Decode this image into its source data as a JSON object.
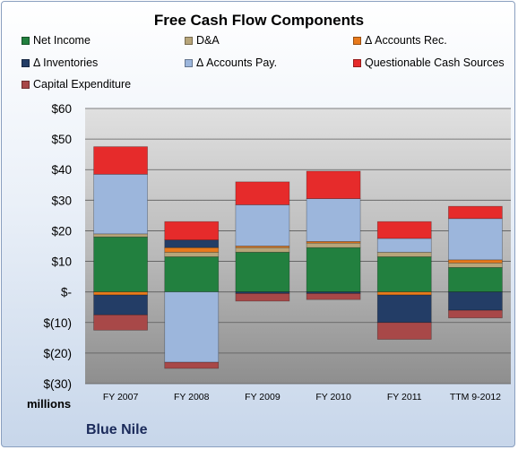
{
  "chart_data": {
    "type": "bar",
    "stacked": true,
    "title": "Free Cash Flow Components",
    "categories": [
      "FY 2007",
      "FY 2008",
      "FY 2009",
      "FY 2010",
      "FY 2011",
      "TTM 9-2012"
    ],
    "units_label": "millions",
    "company_label": "Blue Nile",
    "ylim": [
      -30,
      60
    ],
    "y_ticks": [
      60,
      50,
      40,
      30,
      20,
      10,
      0,
      -10,
      -20,
      -30
    ],
    "y_tick_labels": [
      "$60",
      "$50",
      "$40",
      "$30",
      "$20",
      "$10",
      "$-",
      "$(10)",
      "$(20)",
      "$(30)"
    ],
    "grid": true,
    "legend_position": "top",
    "series": [
      {
        "name": "Net Income",
        "color": "#22803f",
        "values": [
          18,
          11.5,
          13,
          14.5,
          11.5,
          8
        ]
      },
      {
        "name": "D&A",
        "color": "#b7a57a",
        "values": [
          1,
          1.5,
          1.5,
          1.5,
          1.5,
          1.5
        ]
      },
      {
        "name": "Δ Accounts Rec.",
        "color": "#e87a1c",
        "values": [
          -1,
          1.5,
          0.5,
          0.5,
          -1,
          1
        ]
      },
      {
        "name": "Δ Inventories",
        "color": "#233d66",
        "values": [
          -6.5,
          2.5,
          -0.5,
          -0.5,
          -9,
          -6
        ]
      },
      {
        "name": "Δ Accounts Pay.",
        "color": "#9cb6dc",
        "values": [
          19.5,
          -23,
          13.5,
          14,
          4.5,
          13.5
        ]
      },
      {
        "name": "Questionable Cash Sources",
        "color": "#e62b2b",
        "values": [
          9,
          6,
          7.5,
          9,
          5.5,
          4
        ]
      },
      {
        "name": "Capital Expenditure",
        "color": "#a84848",
        "values": [
          -5,
          -2,
          -2.5,
          -2,
          -5.5,
          -2.5
        ]
      }
    ]
  }
}
